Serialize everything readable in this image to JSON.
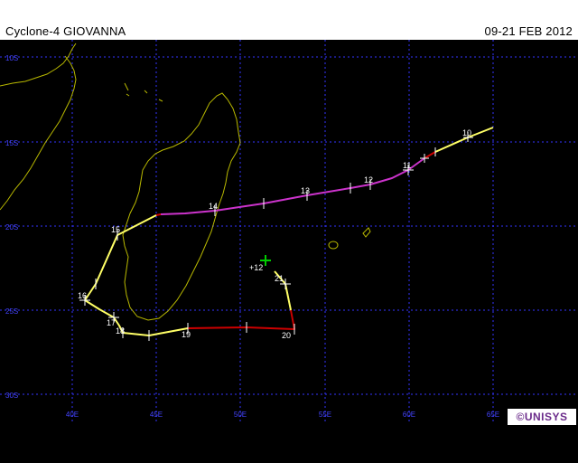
{
  "header": {
    "title": "Cyclone-4 GIOVANNA",
    "date_range": "09-21 FEB 2012"
  },
  "colors": {
    "grid": "#3333ff",
    "axis_label": "#4444ff",
    "coast": "#b8b800",
    "track_yellow": "#ffff66",
    "track_red": "#cc0000",
    "track_magenta": "#cc33cc",
    "marker": "#ffffff",
    "current_position": "#00cc00"
  },
  "axes": {
    "lat_labels": [
      "10S",
      "15S",
      "20S",
      "25S",
      "30S"
    ],
    "lon_labels": [
      "40E",
      "45E",
      "50E",
      "55E",
      "60E",
      "65E"
    ]
  },
  "day_labels": [
    "10",
    "11",
    "12",
    "13",
    "14",
    "15",
    "16",
    "17",
    "18",
    "19",
    "20",
    "21",
    "+12"
  ],
  "logo": {
    "text": "©UNISYS"
  }
}
